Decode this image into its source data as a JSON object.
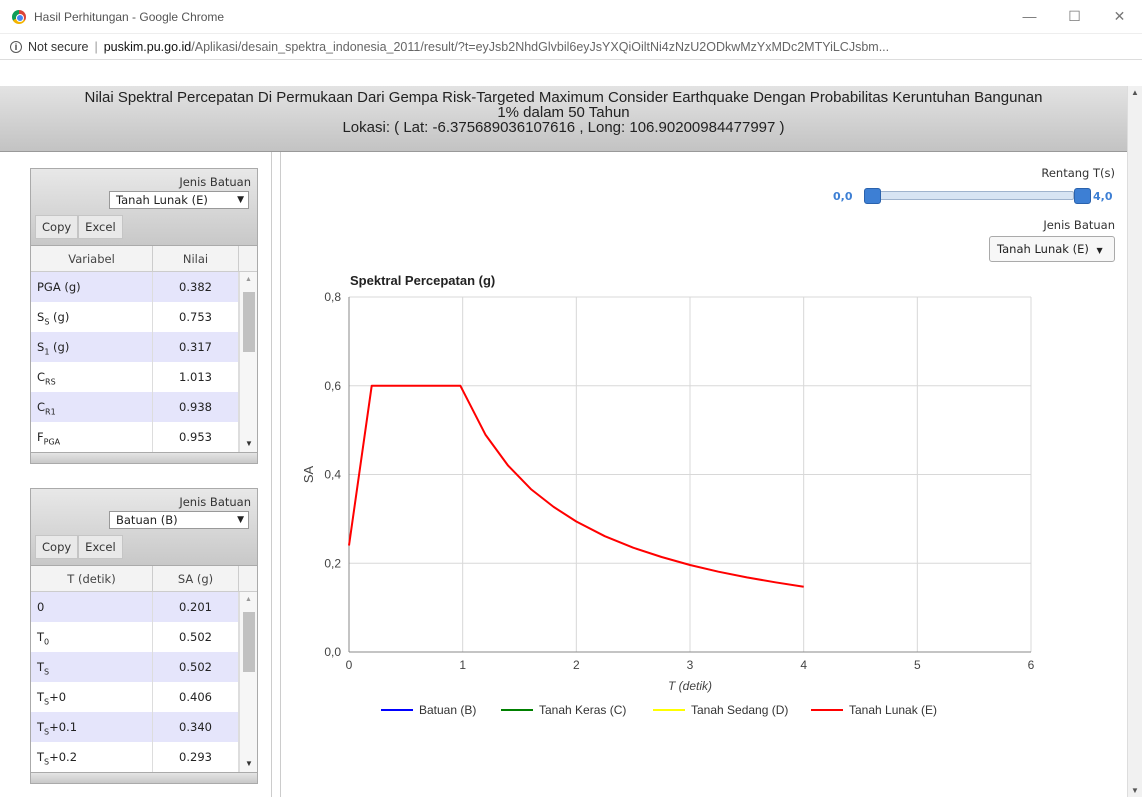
{
  "window": {
    "title": "Hasil Perhitungan - Google Chrome",
    "controls": [
      "—",
      "☐",
      "✕"
    ]
  },
  "address": {
    "security": "Not secure",
    "host": "puskim.pu.go.id",
    "path": "/Aplikasi/desain_spektra_indonesia_2011/result/?t=eyJsb2NhdGlvbil6eyJsYXQiOiltNi4zNzU2ODkwMzYxMDc2MTYiLCJsbm..."
  },
  "header": {
    "line1": "Nilai Spektral Percepatan Di Permukaan Dari Gempa Risk-Targeted Maximum Consider Earthquake Dengan Probabilitas Keruntuhan Bangunan",
    "line2": "1% dalam 50 Tahun",
    "line3": "Lokasi: ( Lat: -6.375689036107616 , Long: 106.90200984477997 )"
  },
  "table1": {
    "jenis_label": "Jenis Batuan",
    "selected": "Tanah Lunak (E)",
    "copy": "Copy",
    "excel": "Excel",
    "col1": "Variabel",
    "col2": "Nilai",
    "rows": [
      {
        "name": "PGA (g)",
        "value": "0.382"
      },
      {
        "name": "S_S (g)",
        "value": "0.753"
      },
      {
        "name": "S_1 (g)",
        "value": "0.317"
      },
      {
        "name": "C_RS",
        "value": "1.013"
      },
      {
        "name": "C_R1",
        "value": "0.938"
      },
      {
        "name": "F_PGA",
        "value": "0.953"
      }
    ]
  },
  "table2": {
    "jenis_label": "Jenis Batuan",
    "selected": "Batuan (B)",
    "copy": "Copy",
    "excel": "Excel",
    "col1": "T (detik)",
    "col2": "SA (g)",
    "rows": [
      {
        "name": "0",
        "value": "0.201"
      },
      {
        "name": "T_0",
        "value": "0.502"
      },
      {
        "name": "T_S",
        "value": "0.502"
      },
      {
        "name": "T_S+0",
        "value": "0.406"
      },
      {
        "name": "T_S+0.1",
        "value": "0.340"
      },
      {
        "name": "T_S+0.2",
        "value": "0.293"
      }
    ]
  },
  "controls": {
    "range_label": "Rentang T(s)",
    "range_min": "0,0",
    "range_max": "4,0",
    "jenis_label": "Jenis Batuan",
    "jenis_selected": "Tanah Lunak (E)"
  },
  "chart_data": {
    "type": "line",
    "title": "Spektral Percepatan (g)",
    "xlabel": "T (detik)",
    "ylabel": "SA",
    "xlim": [
      0,
      6
    ],
    "ylim": [
      0,
      0.8
    ],
    "xticks": [
      "0",
      "1",
      "2",
      "3",
      "4",
      "5",
      "6"
    ],
    "yticks": [
      "0,0",
      "0,2",
      "0,4",
      "0,6",
      "0,8"
    ],
    "grid": true,
    "legend_position": "bottom",
    "series": [
      {
        "name": "Batuan (B)",
        "color": "#0000ff",
        "x": [],
        "y": []
      },
      {
        "name": "Tanah Keras (C)",
        "color": "#008000",
        "x": [],
        "y": []
      },
      {
        "name": "Tanah Sedang (D)",
        "color": "#ffff00",
        "x": [],
        "y": []
      },
      {
        "name": "Tanah Lunak (E)",
        "color": "#ff0000",
        "x": [
          0,
          0.2,
          0.98,
          1.2,
          1.4,
          1.6,
          1.8,
          2.0,
          2.25,
          2.5,
          2.75,
          3.0,
          3.25,
          3.5,
          3.75,
          4.0
        ],
        "y": [
          0.24,
          0.6,
          0.6,
          0.49,
          0.42,
          0.367,
          0.327,
          0.294,
          0.261,
          0.235,
          0.214,
          0.196,
          0.181,
          0.168,
          0.157,
          0.147
        ]
      }
    ]
  }
}
